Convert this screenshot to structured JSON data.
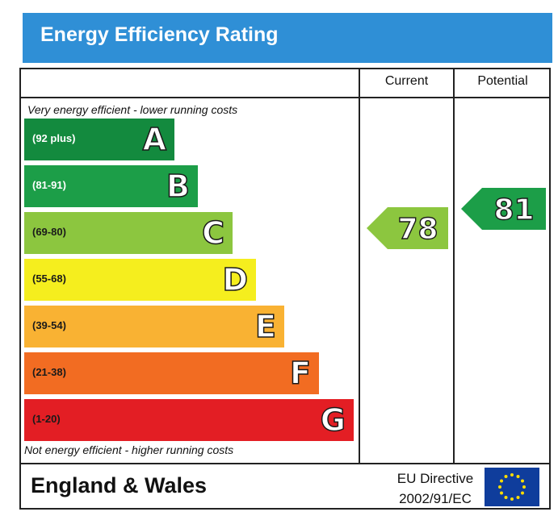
{
  "chart_data": {
    "type": "bar",
    "title": "Energy Efficiency Rating",
    "columns": [
      "Current",
      "Potential"
    ],
    "top_caption": "Very energy efficient - lower running costs",
    "bottom_caption": "Not energy efficient - higher running costs",
    "bands": [
      {
        "letter": "A",
        "range": "(92 plus)",
        "color": "#138a3e",
        "text_color": "#ffffff"
      },
      {
        "letter": "B",
        "range": "(81-91)",
        "color": "#1c9e48",
        "text_color": "#ffffff"
      },
      {
        "letter": "C",
        "range": "(69-80)",
        "color": "#8cc63f",
        "text_color": "#1a1a1a"
      },
      {
        "letter": "D",
        "range": "(55-68)",
        "color": "#f5ee1e",
        "text_color": "#1a1a1a"
      },
      {
        "letter": "E",
        "range": "(39-54)",
        "color": "#f9b233",
        "text_color": "#1a1a1a"
      },
      {
        "letter": "F",
        "range": "(21-38)",
        "color": "#f26c22",
        "text_color": "#1a1a1a"
      },
      {
        "letter": "G",
        "range": "(1-20)",
        "color": "#e31e24",
        "text_color": "#1a1a1a"
      }
    ],
    "current": {
      "value": 78,
      "band": "C",
      "color": "#8cc63f"
    },
    "potential": {
      "value": 81,
      "band": "B",
      "color": "#1c9e48"
    }
  },
  "footer": {
    "country": "England & Wales",
    "directive_line1": "EU Directive",
    "directive_line2": "2002/91/EC"
  },
  "colors": {
    "title_bar": "#2f8fd6",
    "eu_flag_blue": "#0f3d9c",
    "eu_flag_stars": "#ffdd00"
  }
}
